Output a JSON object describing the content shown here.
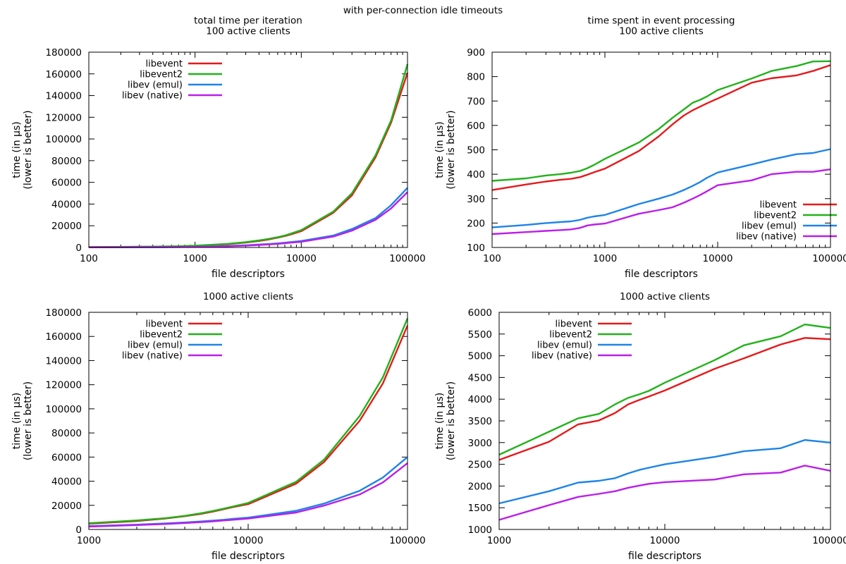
{
  "figure_title": "with per-connection idle timeouts",
  "colors": {
    "libevent": "#e41a1c",
    "libevent2": "#22b21a",
    "libev_emul": "#1e84e8",
    "libev_native": "#bb1ee8"
  },
  "chart_data": [
    {
      "type": "line",
      "title": "total time per iteration\n100 active clients",
      "xlabel": "file descriptors",
      "ylabel": "time (in µs)\n(lower is better)",
      "xscale": "log",
      "xlim": [
        100,
        100000
      ],
      "ylim": [
        0,
        180000
      ],
      "xticks": [
        100,
        1000,
        10000,
        100000
      ],
      "yticks": [
        0,
        20000,
        40000,
        60000,
        80000,
        100000,
        120000,
        140000,
        160000,
        180000
      ],
      "legend_position": "top-left",
      "x": [
        100,
        200,
        300,
        400,
        500,
        600,
        700,
        800,
        1000,
        2000,
        3000,
        4000,
        5000,
        6000,
        7000,
        8000,
        10000,
        20000,
        30000,
        50000,
        70000,
        100000
      ],
      "series": [
        {
          "name": "libevent",
          "color_key": "libevent",
          "values": [
            300,
            500,
            600,
            700,
            800,
            900,
            1000,
            1200,
            1500,
            3000,
            4500,
            6000,
            7500,
            9000,
            10500,
            12000,
            15000,
            32000,
            48000,
            83000,
            115000,
            161000
          ]
        },
        {
          "name": "libevent2",
          "color_key": "libevent2",
          "values": [
            350,
            550,
            650,
            750,
            900,
            1000,
            1100,
            1300,
            1700,
            3300,
            4900,
            6500,
            8000,
            9500,
            11000,
            12800,
            16000,
            33000,
            50000,
            85000,
            117000,
            169000
          ]
        },
        {
          "name": "libev (emul)",
          "color_key": "libev_emul",
          "values": [
            150,
            220,
            280,
            330,
            380,
            420,
            470,
            520,
            600,
            1300,
            2000,
            2700,
            3200,
            3800,
            4400,
            5000,
            6000,
            11000,
            17000,
            27000,
            39000,
            55000
          ]
        },
        {
          "name": "libev (native)",
          "color_key": "libev_native",
          "values": [
            120,
            180,
            230,
            280,
            320,
            360,
            400,
            450,
            550,
            1100,
            1700,
            2300,
            2800,
            3300,
            3900,
            4400,
            5200,
            10000,
            15500,
            25500,
            36000,
            51000
          ]
        }
      ]
    },
    {
      "type": "line",
      "title": "time spent in event processing\n100 active clients",
      "xlabel": "file descriptors",
      "ylabel": "time (in µs)\n(lower is better)",
      "xscale": "log",
      "xlim": [
        100,
        100000
      ],
      "ylim": [
        100,
        900
      ],
      "xticks": [
        100,
        1000,
        10000,
        100000
      ],
      "yticks": [
        100,
        200,
        300,
        400,
        500,
        600,
        700,
        800,
        900
      ],
      "legend_position": "bottom-right",
      "x": [
        100,
        200,
        300,
        400,
        500,
        600,
        700,
        800,
        1000,
        2000,
        3000,
        4000,
        5000,
        6000,
        7000,
        8000,
        10000,
        20000,
        30000,
        50000,
        70000,
        100000
      ],
      "series": [
        {
          "name": "libevent",
          "color_key": "libevent",
          "values": [
            335,
            358,
            370,
            377,
            381,
            388,
            398,
            408,
            423,
            495,
            555,
            605,
            640,
            662,
            677,
            690,
            710,
            775,
            793,
            805,
            823,
            847
          ]
        },
        {
          "name": "libevent2",
          "color_key": "libevent2",
          "values": [
            373,
            383,
            395,
            400,
            406,
            413,
            425,
            438,
            463,
            530,
            585,
            632,
            665,
            693,
            705,
            718,
            745,
            792,
            823,
            843,
            862,
            863
          ]
        },
        {
          "name": "libev (emul)",
          "color_key": "libev_emul",
          "values": [
            182,
            192,
            200,
            204,
            207,
            213,
            222,
            227,
            233,
            278,
            300,
            317,
            335,
            352,
            368,
            385,
            407,
            440,
            460,
            482,
            487,
            503
          ]
        },
        {
          "name": "libev (native)",
          "color_key": "libev_native",
          "values": [
            155,
            163,
            168,
            171,
            174,
            180,
            190,
            194,
            198,
            238,
            253,
            265,
            283,
            300,
            315,
            330,
            355,
            375,
            400,
            410,
            410,
            420
          ]
        }
      ]
    },
    {
      "type": "line",
      "title": "1000 active clients",
      "xlabel": "file descriptors",
      "ylabel": "time (in µs)\n(lower is better)",
      "xscale": "log",
      "xlim": [
        1000,
        100000
      ],
      "ylim": [
        0,
        180000
      ],
      "xticks": [
        1000,
        10000,
        100000
      ],
      "yticks": [
        0,
        20000,
        40000,
        60000,
        80000,
        100000,
        120000,
        140000,
        160000,
        180000
      ],
      "legend_position": "top-left",
      "x": [
        1000,
        2000,
        3000,
        4000,
        5000,
        6000,
        7000,
        8000,
        10000,
        20000,
        30000,
        50000,
        70000,
        100000
      ],
      "series": [
        {
          "name": "libevent",
          "color_key": "libevent",
          "values": [
            4800,
            7000,
            9000,
            11000,
            12800,
            14800,
            16800,
            18500,
            21000,
            38000,
            56000,
            90000,
            121000,
            169000
          ]
        },
        {
          "name": "libevent2",
          "color_key": "libevent2",
          "values": [
            5200,
            7500,
            9300,
            11300,
            13300,
            15300,
            17200,
            19000,
            22000,
            39500,
            58000,
            94000,
            126000,
            175000
          ]
        },
        {
          "name": "libev (emul)",
          "color_key": "libev_emul",
          "values": [
            2800,
            4000,
            5000,
            5800,
            6600,
            7300,
            8000,
            8800,
            9800,
            15500,
            21500,
            32000,
            43000,
            60000
          ]
        },
        {
          "name": "libev (native)",
          "color_key": "libev_native",
          "values": [
            2400,
            3600,
            4500,
            5300,
            6000,
            6700,
            7400,
            8000,
            9000,
            14000,
            19800,
            29000,
            39000,
            55000
          ]
        }
      ]
    },
    {
      "type": "line",
      "title": "1000 active clients",
      "xlabel": "file descriptors",
      "ylabel": "time (in µs)\n(lower is better)",
      "xscale": "log",
      "xlim": [
        1000,
        100000
      ],
      "ylim": [
        1000,
        6000
      ],
      "xticks": [
        1000,
        10000,
        100000
      ],
      "yticks": [
        1000,
        1500,
        2000,
        2500,
        3000,
        3500,
        4000,
        4500,
        5000,
        5500,
        6000
      ],
      "legend_position": "top-left",
      "x": [
        1000,
        2000,
        3000,
        4000,
        5000,
        6000,
        7000,
        8000,
        10000,
        20000,
        30000,
        50000,
        70000,
        100000
      ],
      "series": [
        {
          "name": "libevent",
          "color_key": "libevent",
          "values": [
            2600,
            3020,
            3420,
            3510,
            3680,
            3880,
            3980,
            4060,
            4200,
            4700,
            4940,
            5260,
            5410,
            5380
          ]
        },
        {
          "name": "libevent2",
          "color_key": "libevent2",
          "values": [
            2720,
            3250,
            3560,
            3660,
            3880,
            4030,
            4110,
            4190,
            4380,
            4900,
            5240,
            5450,
            5720,
            5640
          ]
        },
        {
          "name": "libev (emul)",
          "color_key": "libev_emul",
          "values": [
            1600,
            1880,
            2080,
            2120,
            2180,
            2290,
            2370,
            2420,
            2500,
            2670,
            2800,
            2870,
            3060,
            3000
          ]
        },
        {
          "name": "libev (native)",
          "color_key": "libev_native",
          "values": [
            1220,
            1560,
            1750,
            1820,
            1880,
            1960,
            2010,
            2050,
            2090,
            2150,
            2270,
            2310,
            2470,
            2350
          ]
        }
      ]
    }
  ]
}
